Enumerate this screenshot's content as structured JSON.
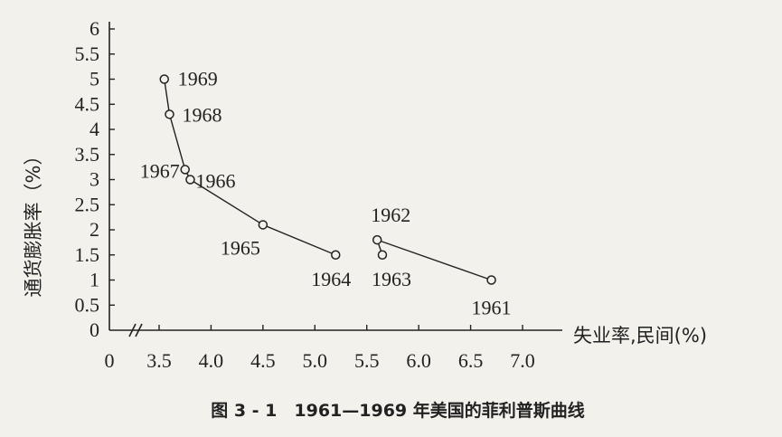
{
  "chart_data": {
    "type": "line",
    "caption": "图 3 - 1　1961—1969 年美国的菲利普斯曲线",
    "xlabel": "失业率,民间(%)",
    "ylabel": "通货膨胀率（%）",
    "x_origin_label": "0",
    "y_origin_label": "0",
    "x_axis_break": true,
    "x_ticks": [
      "3.5",
      "4.0",
      "4.5",
      "5.0",
      "5.5",
      "6.0",
      "6.5",
      "7.0"
    ],
    "y_ticks": [
      "0.5",
      "1",
      "1.5",
      "2",
      "2.5",
      "3",
      "3.5",
      "4",
      "4.5",
      "5",
      "5.5",
      "6"
    ],
    "xlim": [
      3.2,
      7.1
    ],
    "ylim": [
      0,
      6
    ],
    "grid": false,
    "points": [
      {
        "year": "1961",
        "x": 6.7,
        "y": 1.0
      },
      {
        "year": "1962",
        "x": 5.6,
        "y": 1.8
      },
      {
        "year": "1963",
        "x": 5.65,
        "y": 1.5
      },
      {
        "year": "1964",
        "x": 5.2,
        "y": 1.5
      },
      {
        "year": "1965",
        "x": 4.5,
        "y": 2.1
      },
      {
        "year": "1966",
        "x": 3.8,
        "y": 3.0
      },
      {
        "year": "1967",
        "x": 3.75,
        "y": 3.2
      },
      {
        "year": "1968",
        "x": 3.6,
        "y": 4.3
      },
      {
        "year": "1969",
        "x": 3.55,
        "y": 5.0
      }
    ],
    "connections": [
      [
        "1961",
        "1962"
      ],
      [
        "1962",
        "1963"
      ],
      [
        "1964",
        "1965"
      ],
      [
        "1965",
        "1966"
      ],
      [
        "1966",
        "1967"
      ],
      [
        "1967",
        "1968"
      ],
      [
        "1968",
        "1969"
      ]
    ]
  }
}
